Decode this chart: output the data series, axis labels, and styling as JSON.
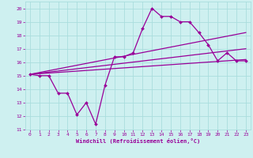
{
  "xlabel": "Windchill (Refroidissement éolien,°C)",
  "bg_color": "#cef0f0",
  "grid_color": "#aadddd",
  "line_color": "#990099",
  "xlim": [
    -0.5,
    23.5
  ],
  "ylim": [
    11,
    20.5
  ],
  "xticks": [
    0,
    1,
    2,
    3,
    4,
    5,
    6,
    7,
    8,
    9,
    10,
    11,
    12,
    13,
    14,
    15,
    16,
    17,
    18,
    19,
    20,
    21,
    22,
    23
  ],
  "yticks": [
    11,
    12,
    13,
    14,
    15,
    16,
    17,
    18,
    19,
    20
  ],
  "line1_x": [
    0,
    1,
    2,
    3,
    4,
    5,
    6,
    7,
    8,
    9,
    10,
    11,
    12,
    13,
    14,
    15,
    16,
    17,
    18,
    19,
    20,
    21,
    22,
    23
  ],
  "line1_y": [
    15.1,
    15.0,
    15.0,
    13.7,
    13.7,
    12.1,
    13.0,
    11.4,
    14.3,
    16.4,
    16.4,
    16.7,
    18.5,
    20.0,
    19.4,
    19.4,
    19.0,
    19.0,
    18.2,
    17.3,
    16.1,
    16.7,
    16.1,
    16.1
  ],
  "line2_x": [
    0,
    23
  ],
  "line2_y": [
    15.1,
    18.2
  ],
  "line3_x": [
    0,
    23
  ],
  "line3_y": [
    15.1,
    17.0
  ],
  "line4_x": [
    0,
    23
  ],
  "line4_y": [
    15.1,
    16.2
  ]
}
